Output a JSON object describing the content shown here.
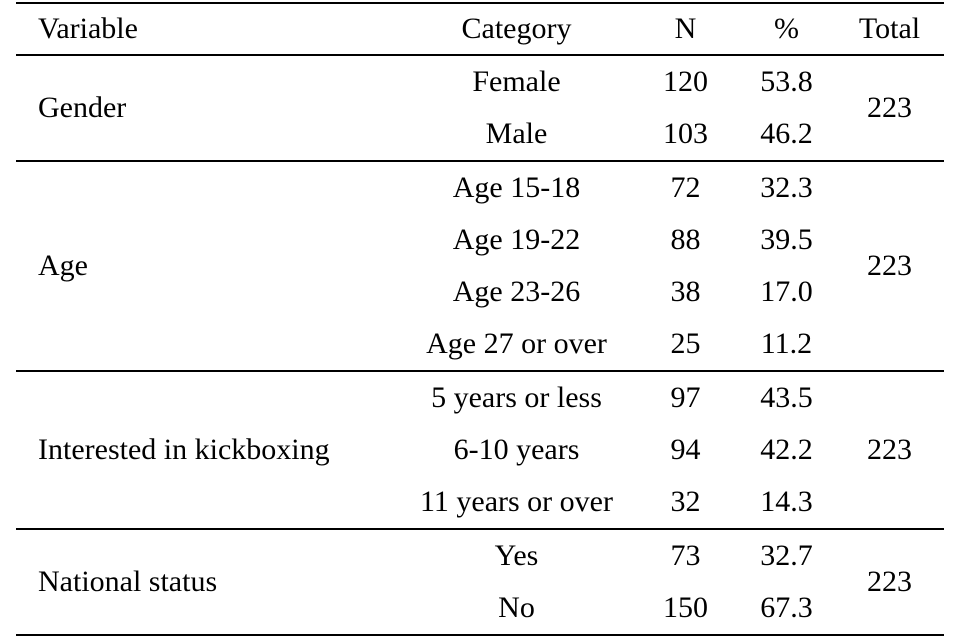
{
  "headers": {
    "variable": "Variable",
    "category": "Category",
    "n": "N",
    "percent": "%",
    "total": "Total"
  },
  "groups": [
    {
      "variable": "Gender",
      "total": "223",
      "rows": [
        {
          "category": "Female",
          "n": "120",
          "percent": "53.8"
        },
        {
          "category": "Male",
          "n": "103",
          "percent": "46.2"
        }
      ]
    },
    {
      "variable": "Age",
      "total": "223",
      "rows": [
        {
          "category": "Age 15-18",
          "n": "72",
          "percent": "32.3"
        },
        {
          "category": "Age 19-22",
          "n": "88",
          "percent": "39.5"
        },
        {
          "category": "Age 23-26",
          "n": "38",
          "percent": "17.0"
        },
        {
          "category": "Age 27 or over",
          "n": "25",
          "percent": "11.2"
        }
      ]
    },
    {
      "variable": "Interested in kickboxing",
      "total": "223",
      "rows": [
        {
          "category": "5 years or less",
          "n": "97",
          "percent": "43.5"
        },
        {
          "category": "6-10 years",
          "n": "94",
          "percent": "42.2"
        },
        {
          "category": "11 years or over",
          "n": "32",
          "percent": "14.3"
        }
      ]
    },
    {
      "variable": "National status",
      "total": "223",
      "rows": [
        {
          "category": "Yes",
          "n": "73",
          "percent": "32.7"
        },
        {
          "category": "No",
          "n": "150",
          "percent": "67.3"
        }
      ]
    }
  ]
}
